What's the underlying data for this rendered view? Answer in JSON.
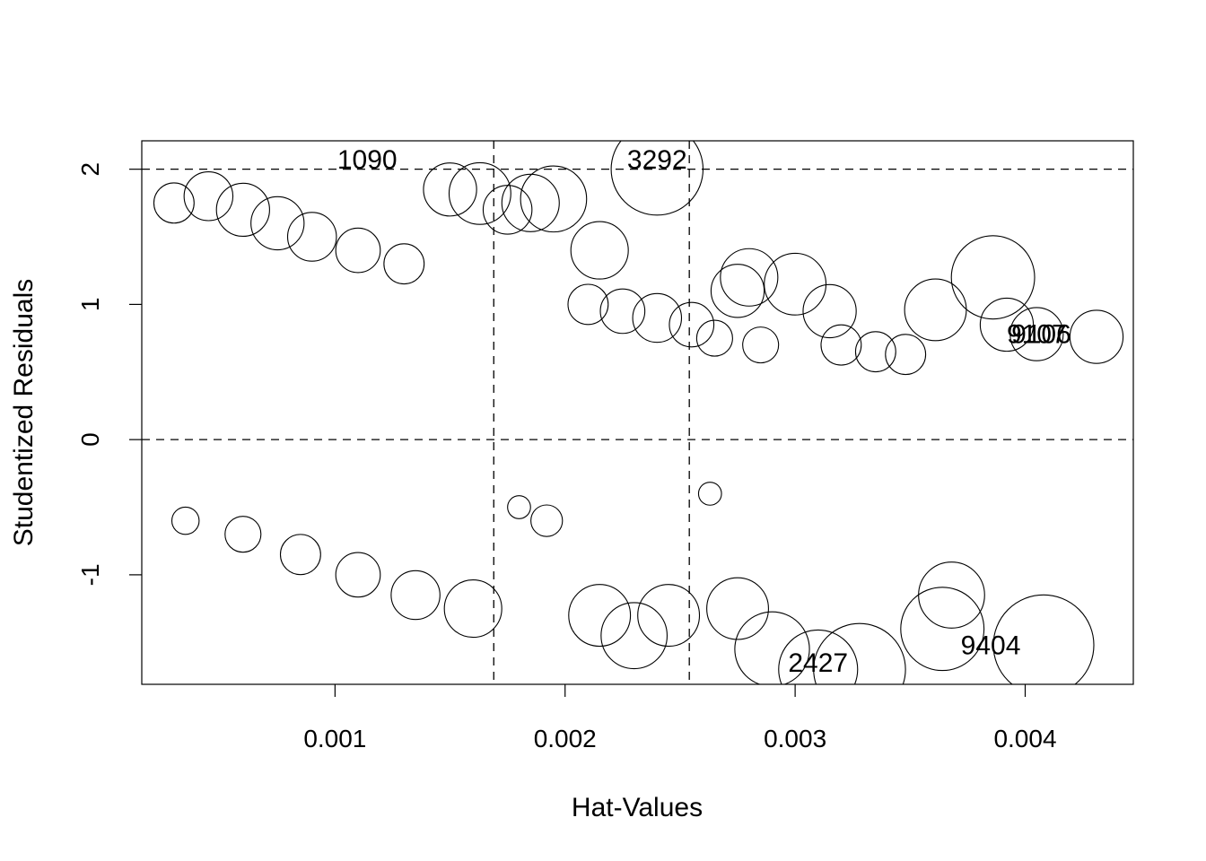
{
  "chart_data": {
    "type": "scatter",
    "title": "",
    "xlabel": "Hat-Values",
    "ylabel": "Studentized Residuals",
    "xlim": [
      0.00016,
      0.00447
    ],
    "ylim": [
      -1.81,
      2.21
    ],
    "xticks": [
      0.001,
      0.002,
      0.003,
      0.004
    ],
    "xtick_labels": [
      "0.001",
      "0.002",
      "0.003",
      "0.004"
    ],
    "yticks": [
      -1,
      0,
      1,
      2
    ],
    "ytick_labels": [
      "-1",
      "0",
      "1",
      "2"
    ],
    "reference_lines": {
      "horizontal": [
        2,
        0
      ],
      "vertical": [
        0.00169,
        0.00254
      ]
    },
    "legend": "none",
    "grid": false,
    "point_style": "open circles sized by Cook's distance",
    "points": [
      {
        "hat": 0.0024,
        "rstudent": 2.0,
        "cook": 0.9
      },
      {
        "hat": 0.00163,
        "rstudent": 1.82,
        "cook": 0.55
      },
      {
        "hat": 0.00195,
        "rstudent": 1.78,
        "cook": 0.6
      },
      {
        "hat": 0.00185,
        "rstudent": 1.75,
        "cook": 0.5
      },
      {
        "hat": 0.0015,
        "rstudent": 1.85,
        "cook": 0.45
      },
      {
        "hat": 0.00175,
        "rstudent": 1.7,
        "cook": 0.4
      },
      {
        "hat": 0.00215,
        "rstudent": 1.4,
        "cook": 0.5
      },
      {
        "hat": 0.0021,
        "rstudent": 1.0,
        "cook": 0.3
      },
      {
        "hat": 0.00225,
        "rstudent": 0.95,
        "cook": 0.35
      },
      {
        "hat": 0.0024,
        "rstudent": 0.9,
        "cook": 0.4
      },
      {
        "hat": 0.00255,
        "rstudent": 0.85,
        "cook": 0.35
      },
      {
        "hat": 0.00265,
        "rstudent": 0.75,
        "cook": 0.25
      },
      {
        "hat": 0.00275,
        "rstudent": 1.1,
        "cook": 0.45
      },
      {
        "hat": 0.0028,
        "rstudent": 1.2,
        "cook": 0.5
      },
      {
        "hat": 0.00285,
        "rstudent": 0.7,
        "cook": 0.25
      },
      {
        "hat": 0.003,
        "rstudent": 1.15,
        "cook": 0.55
      },
      {
        "hat": 0.00315,
        "rstudent": 0.95,
        "cook": 0.45
      },
      {
        "hat": 0.0032,
        "rstudent": 0.7,
        "cook": 0.3
      },
      {
        "hat": 0.00335,
        "rstudent": 0.65,
        "cook": 0.3
      },
      {
        "hat": 0.00348,
        "rstudent": 0.63,
        "cook": 0.3
      },
      {
        "hat": 0.00361,
        "rstudent": 0.96,
        "cook": 0.55
      },
      {
        "hat": 0.00386,
        "rstudent": 1.2,
        "cook": 0.8
      },
      {
        "hat": 0.00392,
        "rstudent": 0.85,
        "cook": 0.45
      },
      {
        "hat": 0.00405,
        "rstudent": 0.78,
        "cook": 0.45
      },
      {
        "hat": 0.00431,
        "rstudent": 0.76,
        "cook": 0.45
      },
      {
        "hat": 0.0003,
        "rstudent": 1.75,
        "cook": 0.3
      },
      {
        "hat": 0.00045,
        "rstudent": 1.8,
        "cook": 0.4
      },
      {
        "hat": 0.0006,
        "rstudent": 1.7,
        "cook": 0.45
      },
      {
        "hat": 0.00075,
        "rstudent": 1.6,
        "cook": 0.45
      },
      {
        "hat": 0.0009,
        "rstudent": 1.5,
        "cook": 0.4
      },
      {
        "hat": 0.0011,
        "rstudent": 1.4,
        "cook": 0.35
      },
      {
        "hat": 0.0013,
        "rstudent": 1.3,
        "cook": 0.3
      },
      {
        "hat": 0.00035,
        "rstudent": -0.6,
        "cook": 0.15
      },
      {
        "hat": 0.0006,
        "rstudent": -0.7,
        "cook": 0.25
      },
      {
        "hat": 0.00085,
        "rstudent": -0.85,
        "cook": 0.3
      },
      {
        "hat": 0.0011,
        "rstudent": -1.0,
        "cook": 0.35
      },
      {
        "hat": 0.00135,
        "rstudent": -1.15,
        "cook": 0.4
      },
      {
        "hat": 0.0016,
        "rstudent": -1.25,
        "cook": 0.5
      },
      {
        "hat": 0.0018,
        "rstudent": -0.5,
        "cook": 0.1
      },
      {
        "hat": 0.00192,
        "rstudent": -0.6,
        "cook": 0.2
      },
      {
        "hat": 0.00215,
        "rstudent": -1.3,
        "cook": 0.55
      },
      {
        "hat": 0.0023,
        "rstudent": -1.45,
        "cook": 0.6
      },
      {
        "hat": 0.00245,
        "rstudent": -1.3,
        "cook": 0.55
      },
      {
        "hat": 0.00263,
        "rstudent": -0.4,
        "cook": 0.1
      },
      {
        "hat": 0.00275,
        "rstudent": -1.25,
        "cook": 0.55
      },
      {
        "hat": 0.0029,
        "rstudent": -1.55,
        "cook": 0.7
      },
      {
        "hat": 0.0031,
        "rstudent": -1.7,
        "cook": 0.75
      },
      {
        "hat": 0.00328,
        "rstudent": -1.7,
        "cook": 0.9
      },
      {
        "hat": 0.00364,
        "rstudent": -1.4,
        "cook": 0.8
      },
      {
        "hat": 0.00368,
        "rstudent": -1.15,
        "cook": 0.6
      },
      {
        "hat": 0.00408,
        "rstudent": -1.52,
        "cook": 1.0
      }
    ],
    "labels": [
      {
        "text": "3292",
        "hat": 0.0024,
        "rstudent": 2.07
      },
      {
        "text": "9107",
        "hat": 0.00405,
        "rstudent": 0.78
      },
      {
        "text": "9106",
        "hat": 0.00407,
        "rstudent": 0.78
      },
      {
        "text": "2427",
        "hat": 0.0031,
        "rstudent": -1.65
      },
      {
        "text": "9404",
        "hat": 0.00385,
        "rstudent": -1.52
      },
      {
        "text": "1090",
        "hat": 0.00114,
        "rstudent": 2.07
      }
    ]
  }
}
